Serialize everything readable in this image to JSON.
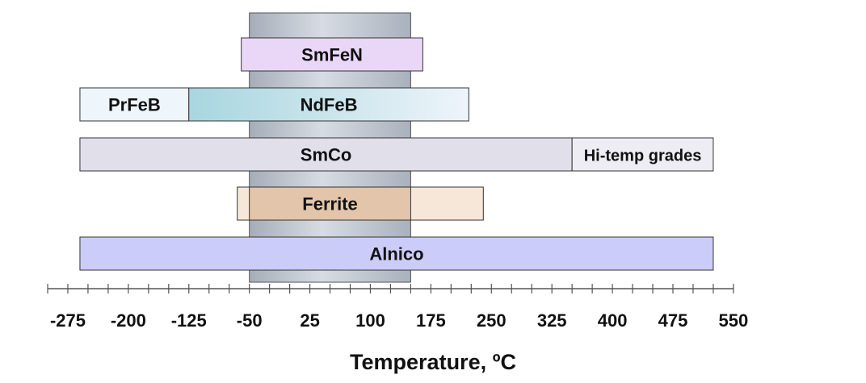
{
  "chart_data": {
    "type": "range-bar",
    "xlabel": "Temperature, ºC",
    "xlim": [
      -300,
      550
    ],
    "ticks": {
      "major": [
        -275,
        -200,
        -125,
        -50,
        25,
        100,
        175,
        250,
        325,
        400,
        475,
        550
      ],
      "minor_step": 25
    },
    "band": {
      "start": -50,
      "end": 150,
      "color": "#b9c1cc"
    },
    "bars": [
      {
        "name": "SmFeN",
        "segments": [
          {
            "label": "SmFeN",
            "start": -60,
            "end": 165,
            "color": "#ead7f8"
          }
        ]
      },
      {
        "name": "NdFeB",
        "segments": [
          {
            "label": "PrFeB",
            "start": -260,
            "end": -125,
            "color": "#eef5fb"
          },
          {
            "label": "NdFeB",
            "start": -125,
            "end": 222,
            "color": "gradient",
            "from": "#a8d6df",
            "to": "#eef4fa"
          }
        ]
      },
      {
        "name": "SmCo",
        "segments": [
          {
            "label": "SmCo",
            "start": -260,
            "end": 350,
            "color": "#e1dfea"
          },
          {
            "label": "Hi-temp grades",
            "start": 350,
            "end": 525,
            "color": "#eeedf4"
          }
        ]
      },
      {
        "name": "Ferrite",
        "segments": [
          {
            "label": "",
            "start": -65,
            "end": 240,
            "color": "#f6e7d9"
          },
          {
            "label": "Ferrite",
            "start": -50,
            "end": 150,
            "color": "#e2c5aa"
          }
        ]
      },
      {
        "name": "Alnico",
        "segments": [
          {
            "label": "Alnico",
            "start": -260,
            "end": 525,
            "color": "#ccccf9"
          }
        ]
      }
    ]
  }
}
